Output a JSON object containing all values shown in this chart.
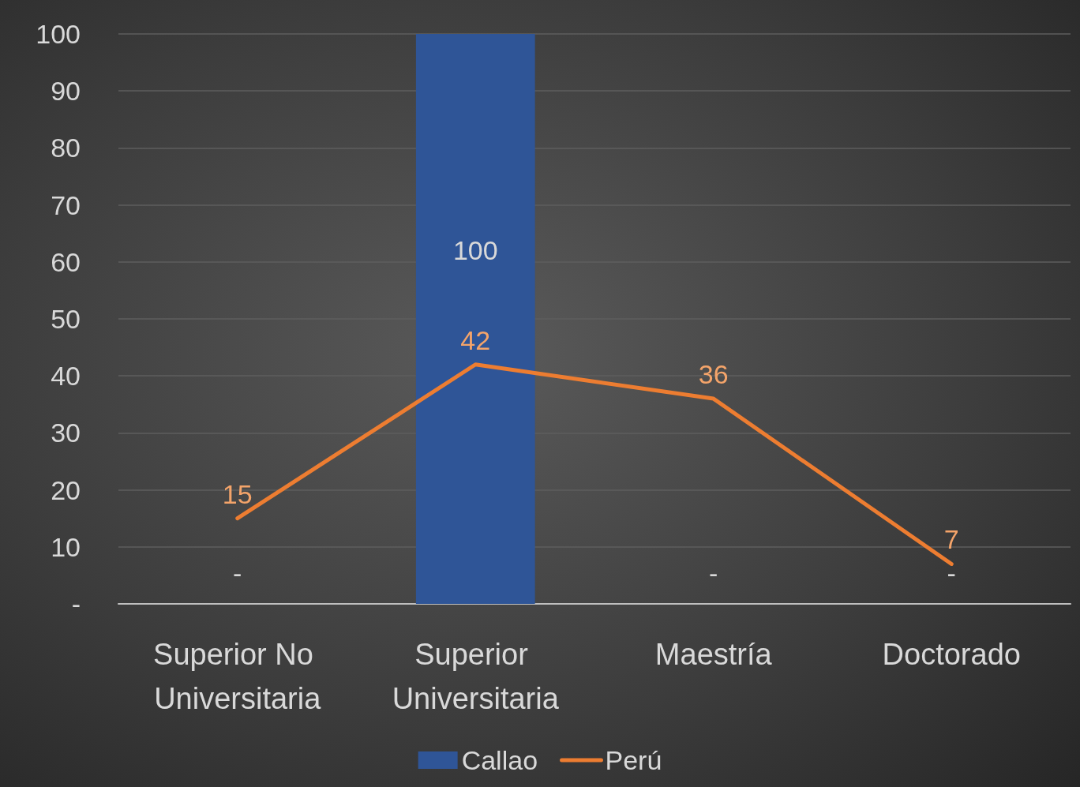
{
  "chart_data": {
    "type": "bar",
    "categories": [
      "Superior No Universitaria",
      "Superior Universitaria",
      "Maestría",
      "Doctorado"
    ],
    "series": [
      {
        "name": "Callao",
        "color": "#2f5597",
        "values": [
          0,
          100,
          0,
          0
        ],
        "value_labels": [
          "-",
          "100",
          "-",
          "-"
        ]
      },
      {
        "name": "Perú",
        "type": "line",
        "color": "#ed7d31",
        "values": [
          15,
          42,
          36,
          7
        ],
        "value_labels": [
          "15",
          "42",
          "36",
          "7"
        ]
      }
    ],
    "ylim": [
      0,
      100
    ],
    "yticks": [
      {
        "value": 0,
        "label": "-"
      },
      10,
      20,
      30,
      40,
      50,
      60,
      70,
      80,
      90,
      100
    ],
    "grid": "y",
    "legend": "bottom",
    "marker": "none"
  }
}
